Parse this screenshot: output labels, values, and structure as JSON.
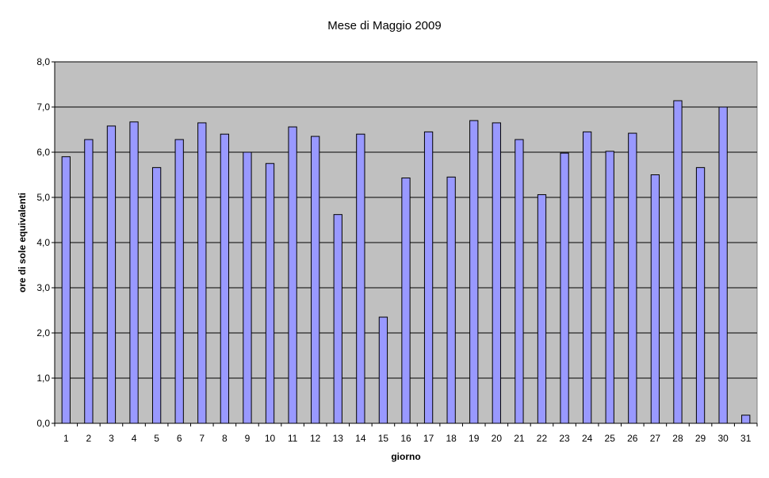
{
  "chart_data": {
    "type": "bar",
    "title": "Mese di Maggio 2009",
    "xlabel": "giorno",
    "ylabel": "ore di sole equivalenti",
    "categories": [
      "1",
      "2",
      "3",
      "4",
      "5",
      "6",
      "7",
      "8",
      "9",
      "10",
      "11",
      "12",
      "13",
      "14",
      "15",
      "16",
      "17",
      "18",
      "19",
      "20",
      "21",
      "22",
      "23",
      "24",
      "25",
      "26",
      "27",
      "28",
      "29",
      "30",
      "31"
    ],
    "values": [
      5.9,
      6.28,
      6.58,
      6.67,
      5.66,
      6.28,
      6.65,
      6.4,
      6.0,
      5.75,
      6.56,
      6.35,
      4.62,
      6.4,
      2.35,
      5.43,
      6.45,
      5.45,
      6.7,
      6.65,
      6.28,
      5.06,
      5.98,
      6.45,
      6.02,
      6.42,
      5.5,
      7.14,
      5.66,
      7.0,
      0.18
    ],
    "ylim": [
      0,
      8
    ],
    "yticks": [
      "0,0",
      "1,0",
      "2,0",
      "3,0",
      "4,0",
      "5,0",
      "6,0",
      "7,0",
      "8,0"
    ],
    "grid": true,
    "colors": {
      "plot_background": "#c0c0c0",
      "bar_fill": "#9999ff",
      "bar_stroke": "#000000",
      "gridline": "#000000"
    }
  }
}
